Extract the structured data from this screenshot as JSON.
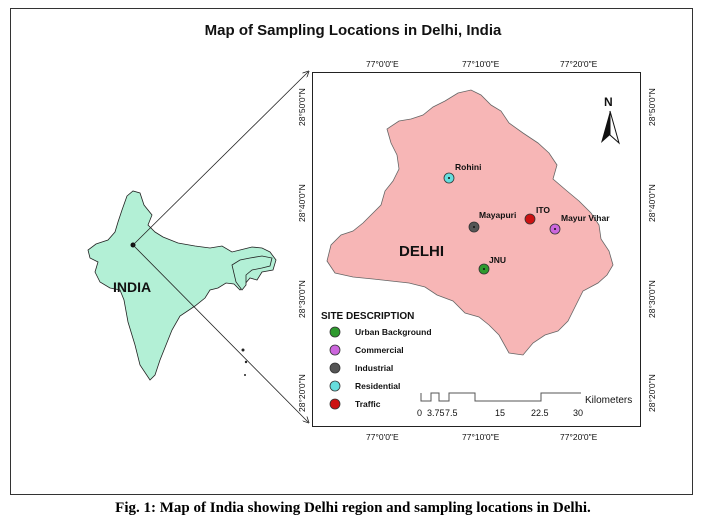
{
  "title": "Map of Sampling Locations in Delhi, India",
  "caption": "Fig. 1: Map of India showing Delhi region and sampling locations in Delhi.",
  "india_label": "INDIA",
  "delhi_label": "DELHI",
  "north_label": "N",
  "longitude_labels": [
    "77°0'0\"E",
    "77°10'0\"E",
    "77°20'0\"E"
  ],
  "latitude_labels": [
    "28°50'0\"N",
    "28°40'0\"N",
    "28°30'0\"N",
    "28°20'0\"N"
  ],
  "legend": {
    "title": "SITE DESCRIPTION",
    "items": [
      {
        "label": "Urban Background",
        "color": "#2e9a2e"
      },
      {
        "label": "Commercial",
        "color": "#cc66dd"
      },
      {
        "label": "Industrial",
        "color": "#555555"
      },
      {
        "label": "Residential",
        "color": "#66dddd"
      },
      {
        "label": "Traffic",
        "color": "#cc1111"
      }
    ]
  },
  "sites": [
    {
      "name": "Rohini",
      "type": "Residential",
      "color": "#66dddd"
    },
    {
      "name": "Mayapuri",
      "type": "Industrial",
      "color": "#555555"
    },
    {
      "name": "ITO",
      "type": "Traffic",
      "color": "#cc1111"
    },
    {
      "name": "Mayur Vihar",
      "type": "Commercial",
      "color": "#cc66dd"
    },
    {
      "name": "JNU",
      "type": "Urban Background",
      "color": "#2e9a2e"
    }
  ],
  "scale_bar": {
    "unit": "Kilometers",
    "ticks": [
      "0",
      "3.75",
      "7.5",
      "15",
      "22.5",
      "30"
    ]
  },
  "colors": {
    "india_fill": "#b3f0d6",
    "delhi_fill": "#f7b6b6"
  }
}
